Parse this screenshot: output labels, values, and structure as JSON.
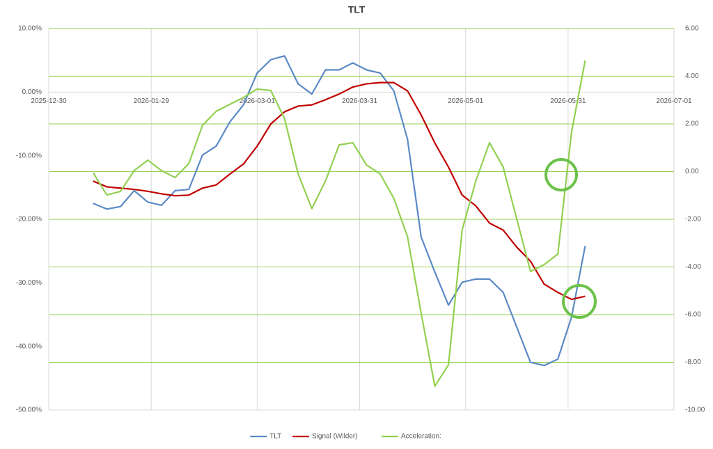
{
  "chart_data": {
    "type": "line",
    "title": "TLT",
    "x": [
      "2026-01-12",
      "2026-01-16",
      "2026-01-20",
      "2026-01-24",
      "2026-01-28",
      "2026-02-01",
      "2026-02-05",
      "2026-02-09",
      "2026-02-13",
      "2026-02-17",
      "2026-02-21",
      "2026-02-25",
      "2026-03-01",
      "2026-03-05",
      "2026-03-09",
      "2026-03-13",
      "2026-03-17",
      "2026-03-21",
      "2026-03-25",
      "2026-03-29",
      "2026-04-02",
      "2026-04-06",
      "2026-04-10",
      "2026-04-14",
      "2026-04-18",
      "2026-04-22",
      "2026-04-26",
      "2026-04-30",
      "2026-05-04",
      "2026-05-08",
      "2026-05-12",
      "2026-05-16",
      "2026-05-20",
      "2026-05-24",
      "2026-05-28",
      "2026-06-01",
      "2026-06-05"
    ],
    "series": [
      {
        "name": "TLT",
        "color": "#5b8ac6",
        "values": [
          -17.5,
          -18.4,
          -18,
          -15.5,
          -17.3,
          -17.8,
          -15.5,
          -15.3,
          -9.9,
          -8.5,
          -4.7,
          -2,
          3,
          5.1,
          5.7,
          1.3,
          -0.3,
          3.5,
          3.5,
          4.6,
          3.5,
          3,
          0.2,
          -7.4,
          -22.8,
          -28.3,
          -33.5,
          -29.9,
          -29.4,
          -29.4,
          -31.5,
          -37,
          -42.5,
          -43,
          -42,
          -35.4,
          -24.2
        ]
      },
      {
        "name": "Signal (Wilder)",
        "color": "#c00000",
        "values": [
          -14,
          -14.9,
          -15.1,
          -15.3,
          -15.6,
          -16,
          -16.3,
          -16.2,
          -15.1,
          -14.6,
          -12.9,
          -11.3,
          -8.5,
          -5,
          -3.1,
          -2.2,
          -2,
          -1.2,
          -0.3,
          0.8,
          1.3,
          1.5,
          1.5,
          0.2,
          -3.6,
          -8,
          -11.8,
          -16.2,
          -17.9,
          -20.6,
          -21.7,
          -24.4,
          -26.6,
          -30.2,
          -31.5,
          -32.6,
          -32.1
        ]
      },
      {
        "name": "Acceleration:",
        "color": "#92d050",
        "axis": "y2",
        "values": [
          -0.05,
          -0.98,
          -0.83,
          0.04,
          0.48,
          0.04,
          -0.25,
          0.34,
          1.94,
          2.53,
          2.82,
          3.11,
          3.46,
          3.4,
          2.23,
          -0.1,
          -1.55,
          -0.39,
          1.12,
          1.21,
          0.28,
          -0.1,
          -1.12,
          -2.73,
          -5.94,
          -9,
          -8.1,
          -2.44,
          -0.39,
          1.21,
          0.19,
          -2,
          -4.19,
          -3.9,
          -3.46,
          1.65,
          4.66
        ]
      }
    ],
    "xlim": [
      "2025-12-30",
      "2026-07-01"
    ],
    "xticks": [
      "2025-12-30",
      "2026-01-29",
      "2026-03-01",
      "2026-03-31",
      "2026-05-01",
      "2026-05-31",
      "2026-07-01"
    ],
    "ylim": [
      -50,
      10
    ],
    "yticks": [
      {
        "value": 10,
        "label": "10.00%"
      },
      {
        "value": 0,
        "label": "0.00%"
      },
      {
        "value": -10,
        "label": "-10.00%"
      },
      {
        "value": -20,
        "label": "-20.00%"
      },
      {
        "value": -30,
        "label": "-30.00%"
      },
      {
        "value": -40,
        "label": "-40.00%"
      },
      {
        "value": -50,
        "label": "-50.00%"
      }
    ],
    "y2lim": [
      -10,
      6
    ],
    "y2ticks": [
      {
        "value": 6,
        "label": "6.00"
      },
      {
        "value": 4,
        "label": "4.00"
      },
      {
        "value": 2,
        "label": "2.00"
      },
      {
        "value": 0,
        "label": "0.00"
      },
      {
        "value": -2,
        "label": "-2.00"
      },
      {
        "value": -4,
        "label": "-4.00"
      },
      {
        "value": -6,
        "label": "-6.00"
      },
      {
        "value": -8,
        "label": "-8.00"
      },
      {
        "value": -10,
        "label": "-10.00"
      }
    ],
    "grid": true,
    "y2grid": true,
    "y2grid_color": "#92d050",
    "legend": "bottom"
  }
}
